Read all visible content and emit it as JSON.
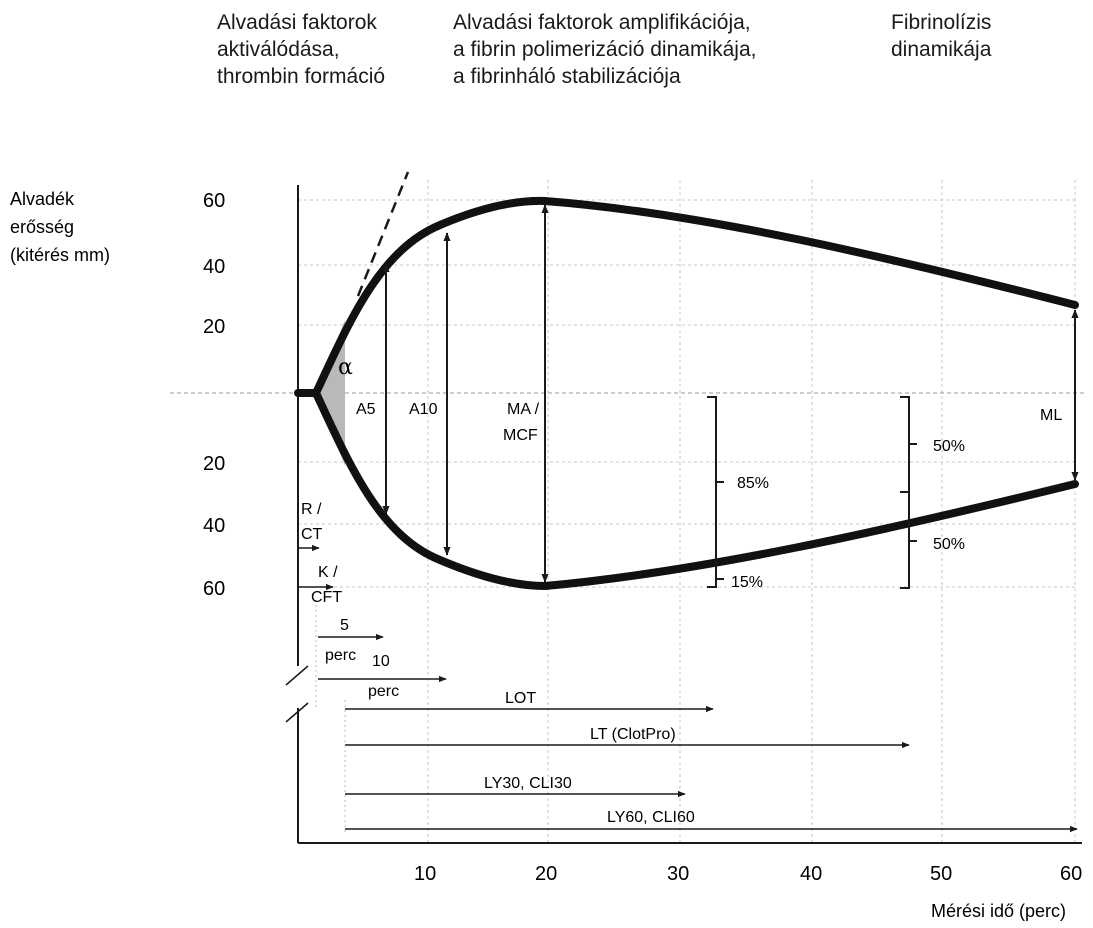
{
  "headers": {
    "phase1": "Alvadási faktorok\naktiválódása,\nthrombin formáció",
    "phase2": "Alvadási faktorok amplifikációja,\na fibrin polimerizáció dinamikája,\na fibrinháló stabilizációja",
    "phase3": "Fibrinolízis\ndinamikája"
  },
  "y_axis": {
    "label": [
      "Alvadék",
      "erősség",
      "(kitérés mm)"
    ],
    "ticks_upper": [
      "60",
      "40",
      "20"
    ],
    "ticks_lower": [
      "20",
      "40",
      "60"
    ]
  },
  "x_axis": {
    "label": "Mérési idő (perc)",
    "ticks": [
      "10",
      "20",
      "30",
      "40",
      "50",
      "60"
    ]
  },
  "curve_labels": {
    "alpha": "α",
    "a5": "A5",
    "a10": "A10",
    "ma_line1": "MA /",
    "ma_line2": "MCF",
    "ml": "ML",
    "pct85": "85%",
    "pct15": "15%",
    "pct50_top": "50%",
    "pct50_bottom": "50%"
  },
  "time_markers": {
    "r_line1": "R /",
    "r_line2": "CT",
    "k_line1": "K /",
    "k_line2": "CFT",
    "five_line1": "5",
    "five_line2": "perc",
    "ten_line1": "10",
    "ten_line2": "perc",
    "lot": "LOT",
    "lt": "LT (ClotPro)",
    "ly30": "LY30, CLI30",
    "ly60": "LY60, CLI60"
  }
}
